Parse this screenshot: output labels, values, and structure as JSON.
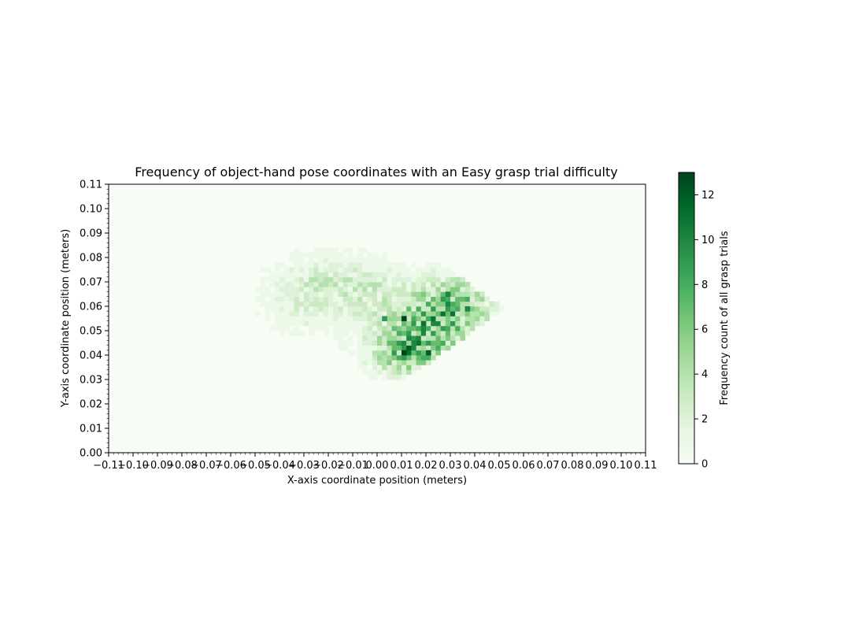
{
  "chart_data": {
    "type": "heatmap",
    "title": "Frequency of object-hand pose coordinates with an Easy grasp trial difficulty",
    "xlabel": "X-axis coordinate position (meters)",
    "ylabel": "Y-axis coordinate position (meters)",
    "xlim": [
      -0.11,
      0.11
    ],
    "ylim": [
      0.0,
      0.11
    ],
    "xticks": [
      "−0.11",
      "−0.10",
      "−0.09",
      "−0.08",
      "−0.07",
      "−0.06",
      "−0.05",
      "−0.04",
      "−0.03",
      "−0.02",
      "−0.01",
      "0.00",
      "0.01",
      "0.02",
      "0.03",
      "0.04",
      "0.05",
      "0.06",
      "0.07",
      "0.08",
      "0.09",
      "0.10",
      "0.11"
    ],
    "yticks": [
      "0.00",
      "0.01",
      "0.02",
      "0.03",
      "0.04",
      "0.05",
      "0.06",
      "0.07",
      "0.08",
      "0.09",
      "0.10",
      "0.11"
    ],
    "bin_size": 0.002,
    "colormap": "Greens",
    "colorbar": {
      "label": "Frequency count of all grasp trials",
      "range": [
        0,
        13
      ],
      "ticks": [
        "0",
        "2",
        "4",
        "6",
        "8",
        "10",
        "12"
      ]
    },
    "grid": false,
    "notable_cells": [
      {
        "x": 0.011,
        "y": 0.055,
        "count": 13
      },
      {
        "x": 0.011,
        "y": 0.041,
        "count": 13
      },
      {
        "x": 0.021,
        "y": 0.041,
        "count": 12
      },
      {
        "x": 0.019,
        "y": 0.053,
        "count": 11
      },
      {
        "x": 0.037,
        "y": 0.059,
        "count": 10
      },
      {
        "x": 0.029,
        "y": 0.065,
        "count": 10
      },
      {
        "x": 0.015,
        "y": 0.045,
        "count": 10
      },
      {
        "x": 0.003,
        "y": 0.055,
        "count": 9
      }
    ]
  }
}
